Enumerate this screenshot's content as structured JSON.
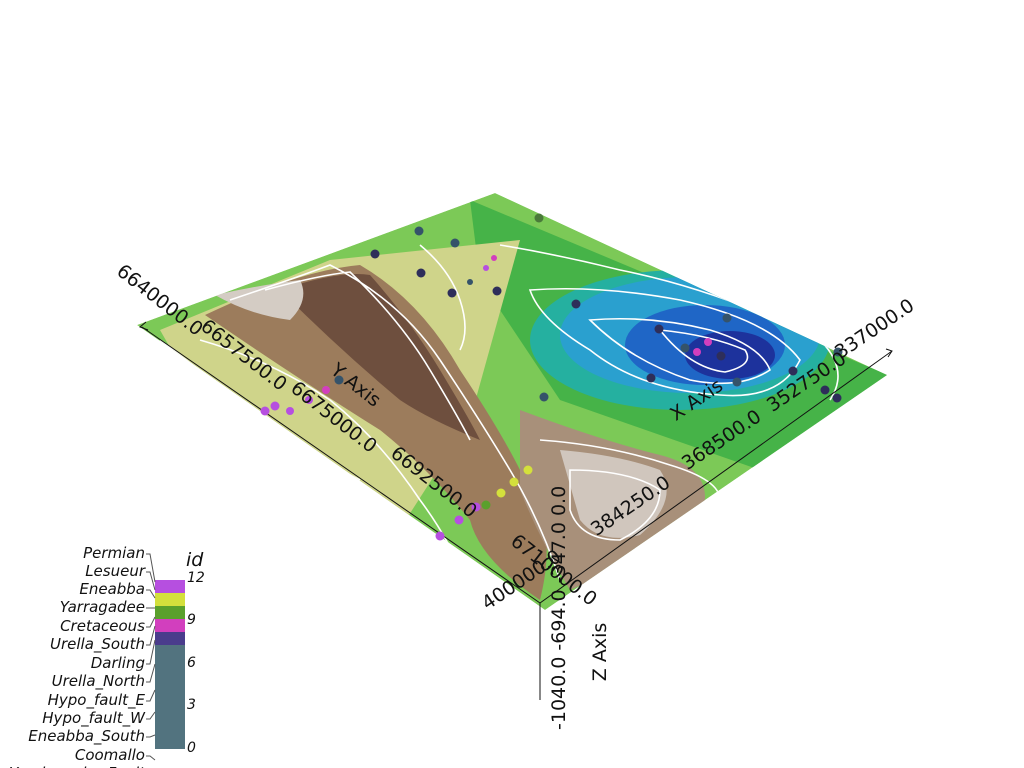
{
  "axes": {
    "x": {
      "title": "X Axis",
      "ticks": [
        {
          "label": "337000.0",
          "pos": [
            878,
            334
          ],
          "rot": -34
        },
        {
          "label": "352750.0",
          "pos": [
            810,
            387
          ],
          "rot": -34
        },
        {
          "label": "368500.0",
          "pos": [
            725,
            445
          ],
          "rot": -34
        },
        {
          "label": "384250.0",
          "pos": [
            634,
            511
          ],
          "rot": -34
        },
        {
          "label": "400000.0",
          "pos": [
            525,
            585
          ],
          "rot": -34
        }
      ],
      "title_pos": [
        700,
        405
      ]
    },
    "y": {
      "title": "Y Axis",
      "ticks": [
        {
          "label": "6640000.0",
          "pos": [
            156,
            305
          ],
          "rot": 38
        },
        {
          "label": "6657500.0",
          "pos": [
            240,
            360
          ],
          "rot": 38
        },
        {
          "label": "6675000.0",
          "pos": [
            330,
            422
          ],
          "rot": 38
        },
        {
          "label": "6692500.0",
          "pos": [
            430,
            487
          ],
          "rot": 38
        },
        {
          "label": "6710000.0",
          "pos": [
            550,
            575
          ],
          "rot": 38
        }
      ],
      "title_pos": [
        352,
        390
      ]
    },
    "z": {
      "title": "Z Axis",
      "ticks_text": "-1040.0  -694.0  -347.0  0.0",
      "title_pos": [
        606,
        652
      ]
    }
  },
  "legend": {
    "title": "id",
    "labels": [
      "Permian",
      "Lesueur",
      "Eneabba",
      "Yarragadee",
      "Cretaceous",
      "Urella_South",
      "Darling",
      "Urella_North",
      "Hypo_fault_E",
      "Hypo_fault_W",
      "Eneabba_South",
      "Coomallo",
      "Yandanooka_Fault"
    ],
    "ticks": [
      "12",
      "9",
      "6",
      "3",
      "0"
    ],
    "colors": [
      "#b64fe0",
      "#d4e03c",
      "#5aa02c",
      "#d23fbe",
      "#4a3c8c",
      "#52737f"
    ]
  },
  "surface_colors": {
    "low": "#1d3fb0",
    "mid_low": "#1f9fd0",
    "green": "#35b34a",
    "light_green": "#8fd14f",
    "yellow": "#d8d98a",
    "brown": "#7a5a48",
    "light_brown": "#cbbfb5",
    "contour": "#ffffff"
  }
}
